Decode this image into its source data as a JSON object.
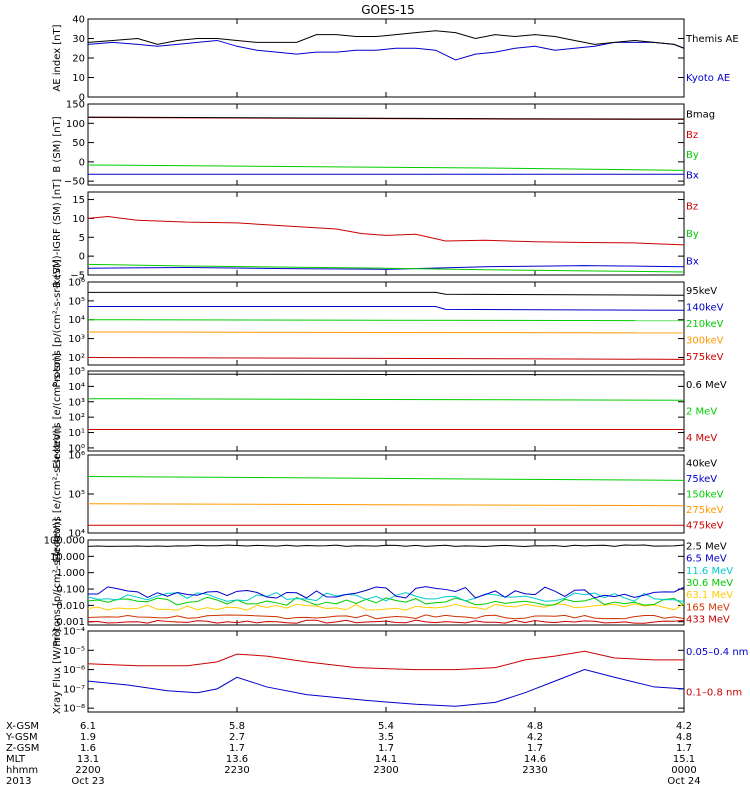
{
  "title": "GOES-15",
  "x_axis": {
    "type": "time",
    "start": "2013-10-23 22:00",
    "end": "2013-10-24 00:00"
  },
  "ephemeris": {
    "row_labels": [
      "X-GSM",
      "Y-GSM",
      "Z-GSM",
      "MLT",
      "hhmm",
      "2013"
    ],
    "columns": [
      {
        "values": [
          "6.1",
          "1.9",
          "1.6",
          "13.1",
          "2200",
          "Oct 23"
        ]
      },
      {
        "values": [
          "5.8",
          "2.7",
          "1.7",
          "13.6",
          "2230",
          ""
        ]
      },
      {
        "values": [
          "5.4",
          "3.5",
          "1.7",
          "14.1",
          "2300",
          ""
        ]
      },
      {
        "values": [
          "4.8",
          "4.2",
          "1.7",
          "14.6",
          "2330",
          ""
        ]
      },
      {
        "values": [
          "4.2",
          "4.8",
          "1.7",
          "15.1",
          "0000",
          "Oct 24"
        ]
      }
    ]
  },
  "chart_data": [
    {
      "type": "line",
      "ylabel": "AE index [nT]",
      "ylim": [
        0,
        40
      ],
      "yticks": [
        0,
        10,
        20,
        30,
        40
      ],
      "ytick_labels": [
        "0",
        "10",
        "20",
        "30",
        "40"
      ],
      "series": [
        {
          "name": "Kyoto AE",
          "color": "#0000cc",
          "x": [
            0,
            5,
            10,
            14,
            18,
            22,
            26,
            30,
            34,
            38,
            42,
            46,
            50,
            54,
            58,
            62,
            66,
            70,
            74,
            78,
            82,
            86,
            90,
            94,
            98,
            102,
            106,
            110,
            114,
            118,
            120
          ],
          "y": [
            27,
            28,
            27,
            26,
            27,
            28,
            29,
            26,
            24,
            23,
            22,
            23,
            23,
            24,
            24,
            25,
            25,
            24,
            19,
            22,
            23,
            25,
            26,
            24,
            25,
            26,
            28,
            28,
            28,
            27,
            25
          ]
        },
        {
          "name": "Themis AE",
          "color": "#000000",
          "x": [
            0,
            5,
            10,
            14,
            18,
            22,
            26,
            30,
            34,
            38,
            42,
            46,
            50,
            54,
            58,
            62,
            66,
            70,
            74,
            78,
            82,
            86,
            90,
            94,
            98,
            102,
            106,
            110,
            114,
            118,
            120
          ],
          "y": [
            28,
            29,
            30,
            27,
            29,
            30,
            30,
            29,
            28,
            28,
            28,
            32,
            32,
            31,
            31,
            32,
            33,
            34,
            33,
            30,
            32,
            31,
            32,
            31,
            29,
            27,
            28,
            29,
            28,
            27,
            25
          ]
        }
      ]
    },
    {
      "type": "line",
      "ylabel": "B (SM) [nT]",
      "ylim": [
        -60,
        150
      ],
      "yticks": [
        -50,
        0,
        50,
        100,
        150
      ],
      "ytick_labels": [
        "−50",
        "0",
        "50",
        "100",
        "150"
      ],
      "series": [
        {
          "name": "Bx",
          "color": "#0000cc",
          "x": [
            0,
            120
          ],
          "y": [
            -32,
            -32
          ]
        },
        {
          "name": "By",
          "color": "#00cc00",
          "x": [
            0,
            40,
            80,
            120
          ],
          "y": [
            -8,
            -12,
            -16,
            -22
          ]
        },
        {
          "name": "Bz",
          "color": "#cc0000",
          "x": [
            0,
            40,
            80,
            120
          ],
          "y": [
            115,
            113,
            111,
            110
          ]
        },
        {
          "name": "Bmag",
          "color": "#000000",
          "x": [
            0,
            40,
            80,
            120
          ],
          "y": [
            116,
            114,
            112,
            111
          ]
        }
      ]
    },
    {
      "type": "line",
      "ylabel": "B (SM)-IGRF (SM) [nT]",
      "ylim": [
        -5,
        17
      ],
      "yticks": [
        -5,
        0,
        5,
        10,
        15
      ],
      "ytick_labels": [
        "−5",
        "0",
        "5",
        "10",
        "15"
      ],
      "series": [
        {
          "name": "Bx",
          "color": "#0000cc",
          "x": [
            0,
            20,
            40,
            60,
            80,
            100,
            120
          ],
          "y": [
            -3.2,
            -3.0,
            -3.3,
            -3.5,
            -2.8,
            -2.5,
            -2.8
          ]
        },
        {
          "name": "By",
          "color": "#00cc00",
          "x": [
            0,
            20,
            40,
            60,
            80,
            100,
            120
          ],
          "y": [
            -2.2,
            -2.6,
            -2.9,
            -3.2,
            -3.6,
            -3.9,
            -4.2
          ]
        },
        {
          "name": "Bz",
          "color": "#cc0000",
          "x": [
            0,
            4,
            10,
            20,
            30,
            40,
            50,
            55,
            60,
            66,
            72,
            80,
            90,
            100,
            110,
            120
          ],
          "y": [
            10,
            10.5,
            9.5,
            9.0,
            8.8,
            8.0,
            7.2,
            6.0,
            5.5,
            5.8,
            4.0,
            4.2,
            3.8,
            3.6,
            3.5,
            3.0
          ]
        }
      ]
    },
    {
      "type": "line",
      "scale": "log",
      "ylabel": "Protons [p/(cm²-s-sr-keV)]",
      "ylim_log10": [
        1.6,
        6.0
      ],
      "yticks_log10": [
        2,
        3,
        4,
        5,
        6
      ],
      "ytick_labels": [
        "10²",
        "10³",
        "10⁴",
        "10⁵",
        "10⁶"
      ],
      "series": [
        {
          "name": "575keV",
          "color": "#cc0000",
          "x": [
            0,
            120
          ],
          "y_log10": [
            2.0,
            1.9
          ]
        },
        {
          "name": "300keV",
          "color": "#ff9900",
          "x": [
            0,
            120
          ],
          "y_log10": [
            3.35,
            3.3
          ]
        },
        {
          "name": "210keV",
          "color": "#00cc00",
          "x": [
            0,
            120
          ],
          "y_log10": [
            4.0,
            3.95
          ]
        },
        {
          "name": "140keV",
          "color": "#0000cc",
          "x": [
            0,
            70,
            72,
            120
          ],
          "y_log10": [
            4.7,
            4.7,
            4.55,
            4.5
          ]
        },
        {
          "name": "95keV",
          "color": "#000000",
          "x": [
            0,
            70,
            72,
            120
          ],
          "y_log10": [
            5.45,
            5.45,
            5.35,
            5.3
          ]
        }
      ]
    },
    {
      "type": "line",
      "scale": "log",
      "ylabel": "Electrons [e/(cm²-s-sr)]",
      "ylim_log10": [
        -0.2,
        5.0
      ],
      "yticks_log10": [
        0,
        1,
        2,
        3,
        4,
        5
      ],
      "ytick_labels": [
        "10⁰",
        "10¹",
        "10²",
        "10³",
        "10⁴",
        "10⁵"
      ],
      "series": [
        {
          "name": "4 MeV",
          "color": "#cc0000",
          "x": [
            0,
            120
          ],
          "y_log10": [
            1.2,
            1.2
          ]
        },
        {
          "name": "2 MeV",
          "color": "#00cc00",
          "x": [
            0,
            120
          ],
          "y_log10": [
            3.2,
            3.1
          ]
        },
        {
          "name": "0.6 MeV",
          "color": "#000000",
          "x": [
            0,
            120
          ],
          "y_log10": [
            4.8,
            4.75
          ]
        }
      ]
    },
    {
      "type": "line",
      "scale": "log",
      "ylabel": "Electrons [e/(cm²-s-sr-keV)]",
      "ylim_log10": [
        4.0,
        6.0
      ],
      "yticks_log10": [
        4,
        5,
        6
      ],
      "ytick_labels": [
        "10⁴",
        "10⁵",
        "10⁶"
      ],
      "series": [
        {
          "name": "475keV",
          "color": "#cc0000",
          "x": [
            0,
            120
          ],
          "y_log10": [
            4.2,
            4.2
          ]
        },
        {
          "name": "275keV",
          "color": "#ff9900",
          "x": [
            0,
            120
          ],
          "y_log10": [
            4.75,
            4.7
          ]
        },
        {
          "name": "150keV",
          "color": "#00cc00",
          "x": [
            0,
            120
          ],
          "y_log10": [
            5.45,
            5.35
          ]
        },
        {
          "name": "75keV",
          "color": "#0000cc",
          "x": [
            0,
            120
          ],
          "y_log10": [
            6.0,
            6.0
          ]
        },
        {
          "name": "40keV",
          "color": "#000000",
          "x": [
            0,
            120
          ],
          "y_log10": [
            6.0,
            6.0
          ]
        }
      ]
    },
    {
      "type": "line",
      "scale": "log",
      "ylabel": "Protons [p/(cm²-s-sr-keV)]",
      "ylim_log10": [
        -3.2,
        2.0
      ],
      "yticks_log10": [
        -3,
        -2,
        -1,
        0,
        1,
        2
      ],
      "ytick_labels": [
        "0.001",
        "0.010",
        "0.100",
        "1.000",
        "10.000",
        "100.000"
      ],
      "series": [
        {
          "name": "433 MeV",
          "color": "#cc0000",
          "y_log10_base": -3.0,
          "noise": 0.1
        },
        {
          "name": "165 MeV",
          "color": "#cc3300",
          "y_log10_base": -2.7,
          "noise": 0.12
        },
        {
          "name": "63.1 MeV",
          "color": "#ffcc00",
          "y_log10_base": -2.1,
          "noise": 0.2
        },
        {
          "name": "30.6 MeV",
          "color": "#00cc00",
          "y_log10_base": -1.75,
          "noise": 0.25
        },
        {
          "name": "11.6 MeV",
          "color": "#00cccc",
          "y_log10_base": -1.5,
          "noise": 0.3
        },
        {
          "name": "6.5 MeV",
          "color": "#0000cc",
          "y_log10_base": -1.2,
          "noise": 0.35
        },
        {
          "name": "2.5 MeV",
          "color": "#000000",
          "y_log10_base": 1.65,
          "noise": 0.05
        }
      ]
    },
    {
      "type": "line",
      "scale": "log",
      "ylabel": "Xray Flux [W/m²]",
      "ylim_log10": [
        -8.2,
        -4.0
      ],
      "yticks_log10": [
        -8,
        -7,
        -6,
        -5,
        -4
      ],
      "ytick_labels": [
        "10⁻⁸",
        "10⁻⁷",
        "10⁻⁶",
        "10⁻⁵",
        "10⁻⁴"
      ],
      "series": [
        {
          "name": "0.1–0.8 nm",
          "color": "#cc0000",
          "x": [
            0,
            10,
            20,
            26,
            30,
            36,
            44,
            54,
            66,
            74,
            82,
            88,
            94,
            100,
            106,
            114,
            120
          ],
          "y_log10": [
            -5.7,
            -5.8,
            -5.8,
            -5.6,
            -5.2,
            -5.3,
            -5.6,
            -5.9,
            -6.0,
            -6.0,
            -5.9,
            -5.5,
            -5.3,
            -5.05,
            -5.4,
            -5.5,
            -5.5
          ]
        },
        {
          "name": "0.05–0.4 nm",
          "color": "#0000cc",
          "x": [
            0,
            8,
            16,
            22,
            26,
            30,
            36,
            44,
            56,
            66,
            74,
            82,
            88,
            94,
            100,
            106,
            114,
            120
          ],
          "y_log10": [
            -6.6,
            -6.8,
            -7.1,
            -7.2,
            -7.0,
            -6.4,
            -6.9,
            -7.3,
            -7.6,
            -7.8,
            -7.9,
            -7.7,
            -7.2,
            -6.6,
            -6.0,
            -6.4,
            -6.9,
            -7.0
          ]
        }
      ]
    }
  ]
}
